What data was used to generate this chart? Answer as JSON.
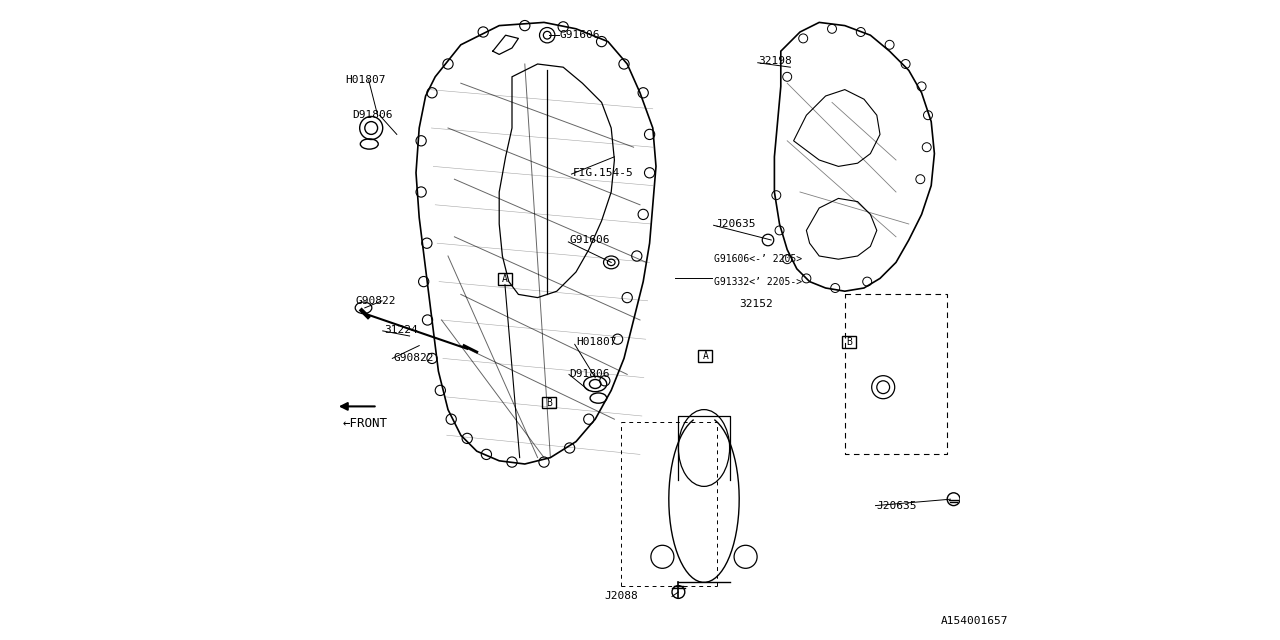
{
  "background_color": "#ffffff",
  "line_color": "#000000",
  "labels": {
    "H01807_left": [
      0.04,
      0.875,
      "H01807",
      8
    ],
    "D91806_left": [
      0.05,
      0.82,
      "D91806",
      8
    ],
    "G91606_top": [
      0.375,
      0.945,
      "G91606",
      8
    ],
    "FIG154_5": [
      0.395,
      0.73,
      "FIG.154-5",
      8
    ],
    "G91606_mid": [
      0.39,
      0.625,
      "G91606",
      8
    ],
    "H01807_right": [
      0.4,
      0.465,
      "H01807",
      8
    ],
    "D91806_right": [
      0.39,
      0.415,
      "D91806",
      8
    ],
    "J2088": [
      0.445,
      0.068,
      "J2088",
      8
    ],
    "G90822_top": [
      0.115,
      0.44,
      "G90822",
      8
    ],
    "31224": [
      0.1,
      0.485,
      "31224",
      8
    ],
    "G90822_bot": [
      0.055,
      0.53,
      "G90822",
      8
    ],
    "FRONT": [
      0.036,
      0.338,
      "←FRONT",
      9
    ],
    "32198": [
      0.685,
      0.905,
      "32198",
      8
    ],
    "J20635_upper": [
      0.617,
      0.65,
      "J20635",
      8
    ],
    "G91606_variant": [
      0.615,
      0.595,
      "G91606<-’ 2205>",
      7
    ],
    "G91332_variant": [
      0.615,
      0.56,
      "G91332<’ 2205->",
      7
    ],
    "32152": [
      0.655,
      0.525,
      "32152",
      8
    ],
    "J20635_lower": [
      0.87,
      0.21,
      "J20635",
      8
    ],
    "diagram_id": [
      0.97,
      0.03,
      "A154001657",
      8
    ]
  }
}
